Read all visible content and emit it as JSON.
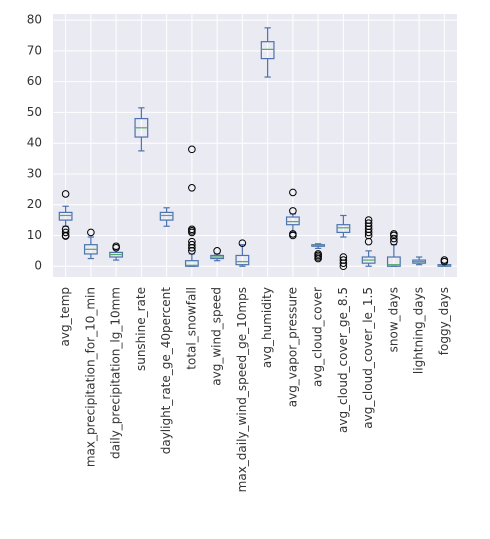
{
  "chart_data": {
    "type": "box",
    "categories": [
      "avg_temp",
      "max_precipitation_for_10_min",
      "daily_precipitation_lg_10mm",
      "sunshine_rate",
      "daylight_rate_ge_40percent",
      "total_snowfall",
      "avg_wind_speed",
      "max_daily_wind_speed_ge_10mps",
      "avg_humidity",
      "avg_vapor_pressure",
      "avg_cloud_cover",
      "avg_cloud_cover_ge_8.5",
      "avg_cloud_cover_le_1.5",
      "snow_days",
      "lightning_days",
      "foggy_days"
    ],
    "boxes": [
      {
        "whislo": 13,
        "q1": 15,
        "med": 16.5,
        "q3": 17.5,
        "whishi": 19.5,
        "fliers": [
          23.5,
          12,
          11,
          10,
          9.8
        ]
      },
      {
        "whislo": 2.5,
        "q1": 4,
        "med": 5.5,
        "q3": 7,
        "whishi": 9.5,
        "fliers": [
          11
        ]
      },
      {
        "whislo": 2,
        "q1": 3,
        "med": 3.8,
        "q3": 4.5,
        "whishi": 5.5,
        "fliers": [
          6,
          6.5
        ]
      },
      {
        "whislo": 37.5,
        "q1": 42,
        "med": 45,
        "q3": 48,
        "whishi": 51.5,
        "fliers": []
      },
      {
        "whislo": 13,
        "q1": 15,
        "med": 16.5,
        "q3": 17.5,
        "whishi": 19,
        "fliers": []
      },
      {
        "whislo": 0,
        "q1": 0,
        "med": 0.3,
        "q3": 1.8,
        "whishi": 4,
        "fliers": [
          38,
          25.5,
          12,
          11.5,
          11,
          8,
          7,
          6,
          5
        ]
      },
      {
        "whislo": 1.8,
        "q1": 2.5,
        "med": 3,
        "q3": 3.5,
        "whishi": 4,
        "fliers": [
          5
        ]
      },
      {
        "whislo": 0,
        "q1": 0.5,
        "med": 1.5,
        "q3": 3.5,
        "whishi": 7,
        "fliers": [
          7.5
        ]
      },
      {
        "whislo": 61.5,
        "q1": 67.5,
        "med": 70.5,
        "q3": 73,
        "whishi": 77.5,
        "fliers": []
      },
      {
        "whislo": 11,
        "q1": 13.5,
        "med": 14.5,
        "q3": 16,
        "whishi": 17,
        "fliers": [
          24,
          18,
          10,
          10.5
        ]
      },
      {
        "whislo": 5.8,
        "q1": 6.5,
        "med": 6.8,
        "q3": 7,
        "whishi": 7.3,
        "fliers": [
          4,
          3.5,
          3,
          2.5
        ]
      },
      {
        "whislo": 9.5,
        "q1": 11,
        "med": 12.5,
        "q3": 13.5,
        "whishi": 16.5,
        "fliers": [
          3,
          2,
          1,
          0
        ]
      },
      {
        "whislo": 0,
        "q1": 1,
        "med": 2,
        "q3": 3,
        "whishi": 5,
        "fliers": [
          8,
          10,
          11,
          12,
          13,
          14,
          15
        ]
      },
      {
        "whislo": 0,
        "q1": 0,
        "med": 0.5,
        "q3": 3,
        "whishi": 7,
        "fliers": [
          8,
          9,
          10,
          10.5
        ]
      },
      {
        "whislo": 0.5,
        "q1": 1,
        "med": 1.5,
        "q3": 2,
        "whishi": 3,
        "fliers": []
      },
      {
        "whislo": 0,
        "q1": 0,
        "med": 0.2,
        "q3": 0.5,
        "whishi": 1,
        "fliers": [
          1.5,
          2
        ]
      }
    ],
    "box_color": "#4c72b0",
    "median_color": "#55a868",
    "flier_color": "#000000",
    "ylim": [
      -3.5,
      82
    ],
    "yticks": [
      0,
      10,
      20,
      30,
      40,
      50,
      60,
      70,
      80
    ],
    "grid": true
  }
}
